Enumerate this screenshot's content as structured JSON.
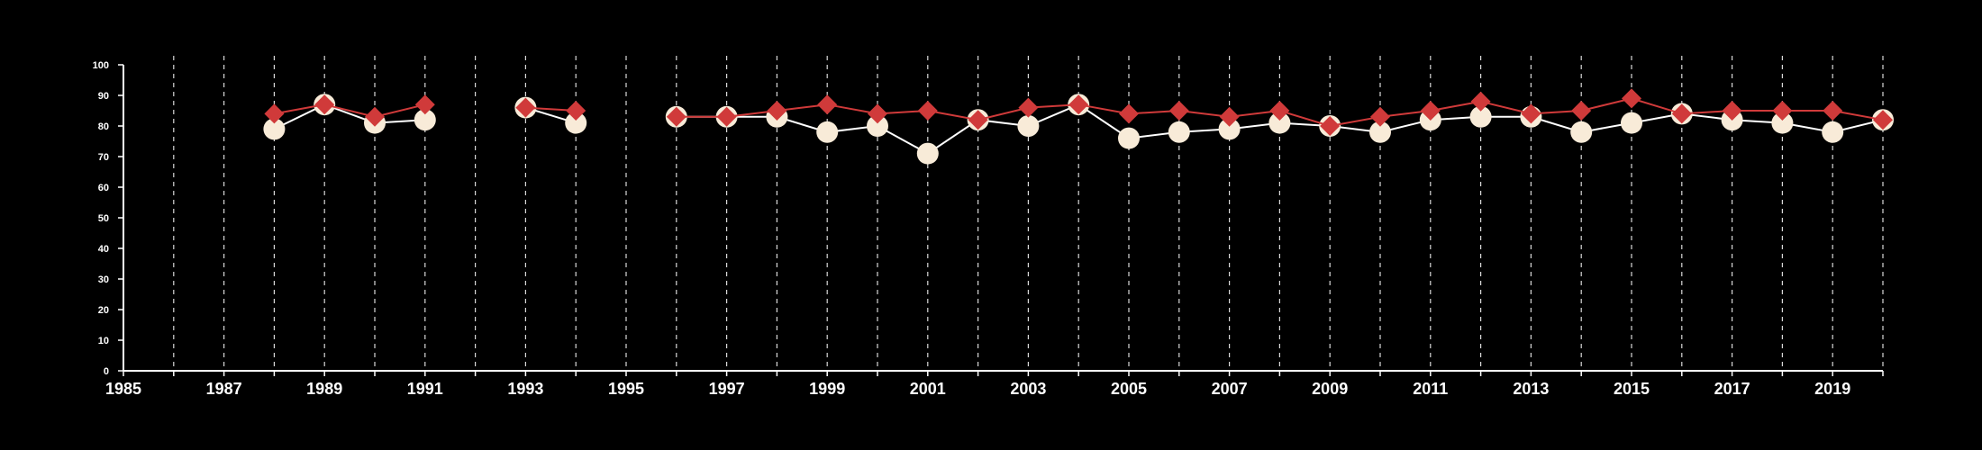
{
  "chart_data": {
    "type": "line",
    "title": "",
    "xlabel": "",
    "ylabel": "",
    "xlim": [
      1985,
      2020
    ],
    "ylim": [
      0,
      100
    ],
    "x_ticks": [
      1985,
      1987,
      1989,
      1991,
      1993,
      1995,
      1997,
      1999,
      2001,
      2003,
      2005,
      2007,
      2009,
      2011,
      2013,
      2015,
      2017,
      2019
    ],
    "y_ticks": [
      0,
      10,
      20,
      30,
      40,
      50,
      60,
      70,
      80,
      90,
      100
    ],
    "vertical_gridlines_every_year": true,
    "legend": "none",
    "x": [
      1985,
      1986,
      1987,
      1988,
      1989,
      1990,
      1991,
      1992,
      1993,
      1994,
      1995,
      1996,
      1997,
      1998,
      1999,
      2000,
      2001,
      2002,
      2003,
      2004,
      2005,
      2006,
      2007,
      2008,
      2009,
      2010,
      2011,
      2012,
      2013,
      2014,
      2015,
      2016,
      2017,
      2018,
      2019,
      2020
    ],
    "series": [
      {
        "marker": "circle",
        "color": "#f8ebd8",
        "line_color": "#ffffff",
        "values": [
          null,
          null,
          null,
          79,
          87,
          81,
          82,
          null,
          86,
          81,
          null,
          83,
          83,
          83,
          78,
          80,
          71,
          82,
          80,
          87,
          76,
          78,
          79,
          81,
          80,
          78,
          82,
          83,
          83,
          78,
          81,
          84,
          82,
          81,
          78,
          82
        ]
      },
      {
        "marker": "diamond",
        "color": "#d03a3a",
        "line_color": "#d03a3a",
        "values": [
          null,
          null,
          null,
          84,
          87,
          83,
          87,
          null,
          86,
          85,
          null,
          83,
          83,
          85,
          87,
          84,
          85,
          82,
          86,
          87,
          84,
          85,
          83,
          85,
          80,
          83,
          85,
          88,
          84,
          85,
          89,
          84,
          85,
          85,
          85,
          82
        ]
      }
    ]
  }
}
